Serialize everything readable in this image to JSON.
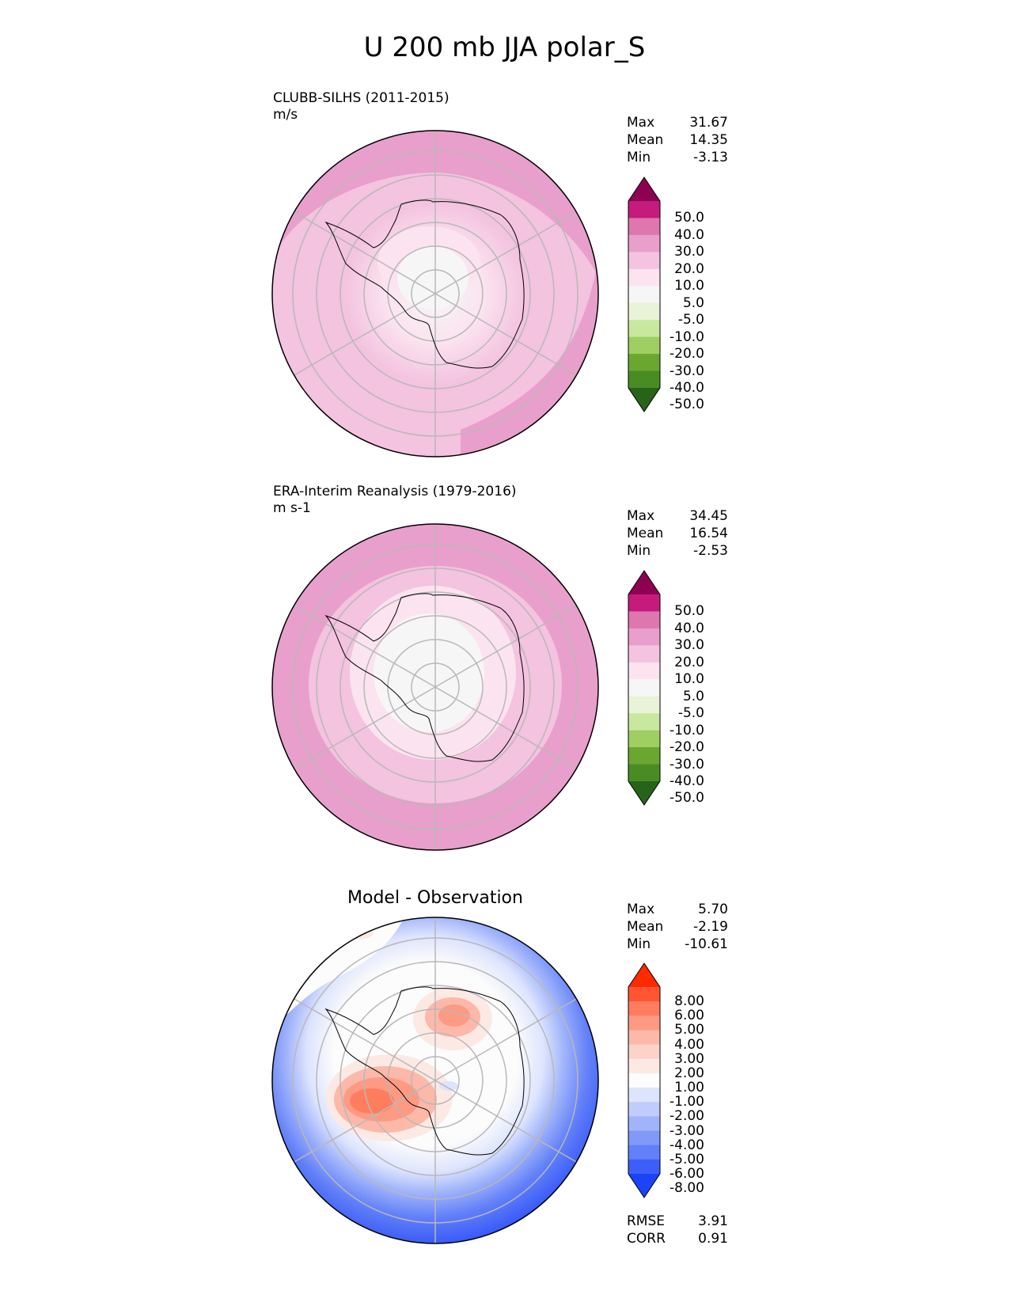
{
  "title": "U 200 mb JJA polar_S",
  "panels": [
    {
      "id": "model",
      "title": "CLUBB-SILHS (2011-2015)",
      "units": "m/s",
      "stats": [
        {
          "label": "Max",
          "value": "31.67"
        },
        {
          "label": "Mean",
          "value": "14.35"
        },
        {
          "label": "Min",
          "value": "-3.13"
        }
      ],
      "colorbar": {
        "labels": [
          "50.0",
          "40.0",
          "30.0",
          "20.0",
          "10.0",
          "5.0",
          "-5.0",
          "-10.0",
          "-20.0",
          "-30.0",
          "-40.0",
          "-50.0"
        ],
        "colors": [
          "#8e0152",
          "#c51b7d",
          "#de77ae",
          "#e99fcb",
          "#f3c3e0",
          "#fbe3ef",
          "#f6f6f6",
          "#e8f3d8",
          "#c8e8a0",
          "#9fce63",
          "#6ba730",
          "#4a8c24",
          "#276419"
        ]
      }
    },
    {
      "id": "obs",
      "title": "ERA-Interim Reanalysis (1979-2016)",
      "units": "m s-1",
      "stats": [
        {
          "label": "Max",
          "value": "34.45"
        },
        {
          "label": "Mean",
          "value": "16.54"
        },
        {
          "label": "Min",
          "value": "-2.53"
        }
      ],
      "colorbar": {
        "labels": [
          "50.0",
          "40.0",
          "30.0",
          "20.0",
          "10.0",
          "5.0",
          "-5.0",
          "-10.0",
          "-20.0",
          "-30.0",
          "-40.0",
          "-50.0"
        ],
        "colors": [
          "#8e0152",
          "#c51b7d",
          "#de77ae",
          "#e99fcb",
          "#f3c3e0",
          "#fbe3ef",
          "#f6f6f6",
          "#e8f3d8",
          "#c8e8a0",
          "#9fce63",
          "#6ba730",
          "#4a8c24",
          "#276419"
        ]
      }
    },
    {
      "id": "diff",
      "title": "Model - Observation",
      "stats": [
        {
          "label": "Max",
          "value": "5.70"
        },
        {
          "label": "Mean",
          "value": "-2.19"
        },
        {
          "label": "Min",
          "value": "-10.61"
        }
      ],
      "extra_stats": [
        {
          "label": "RMSE",
          "value": "3.91"
        },
        {
          "label": "CORR",
          "value": "0.91"
        }
      ],
      "colorbar": {
        "labels": [
          "8.00",
          "6.00",
          "5.00",
          "4.00",
          "3.00",
          "2.00",
          "1.00",
          "-1.00",
          "-2.00",
          "-3.00",
          "-4.00",
          "-5.00",
          "-6.00",
          "-8.00"
        ],
        "colors": [
          "#ff2a00",
          "#ff5533",
          "#ff7d5f",
          "#fd9a84",
          "#fcb8a8",
          "#fbd3c8",
          "#fde9e4",
          "#fcfcfc",
          "#dde4fd",
          "#c0ccfb",
          "#a1b4fa",
          "#8199f9",
          "#6280f8",
          "#3d5ef8",
          "#1b44f7"
        ]
      }
    }
  ],
  "chart_data": {
    "type": "heatmap",
    "projection": "south polar stereographic",
    "variable": "U 200 mb",
    "season": "JJA",
    "panels": [
      {
        "name": "CLUBB-SILHS (2011-2015)",
        "units": "m/s",
        "max": 31.67,
        "mean": 14.35,
        "min": -3.13,
        "levels": [
          -50,
          -40,
          -30,
          -20,
          -10,
          -5,
          5,
          10,
          20,
          30,
          40,
          50
        ]
      },
      {
        "name": "ERA-Interim Reanalysis (1979-2016)",
        "units": "m s-1",
        "max": 34.45,
        "mean": 16.54,
        "min": -2.53,
        "levels": [
          -50,
          -40,
          -30,
          -20,
          -10,
          -5,
          5,
          10,
          20,
          30,
          40,
          50
        ]
      },
      {
        "name": "Model - Observation",
        "max": 5.7,
        "mean": -2.19,
        "min": -10.61,
        "rmse": 3.91,
        "corr": 0.91,
        "levels": [
          -8,
          -6,
          -5,
          -4,
          -3,
          -2,
          -1,
          1,
          2,
          3,
          4,
          5,
          6,
          8
        ]
      }
    ]
  }
}
